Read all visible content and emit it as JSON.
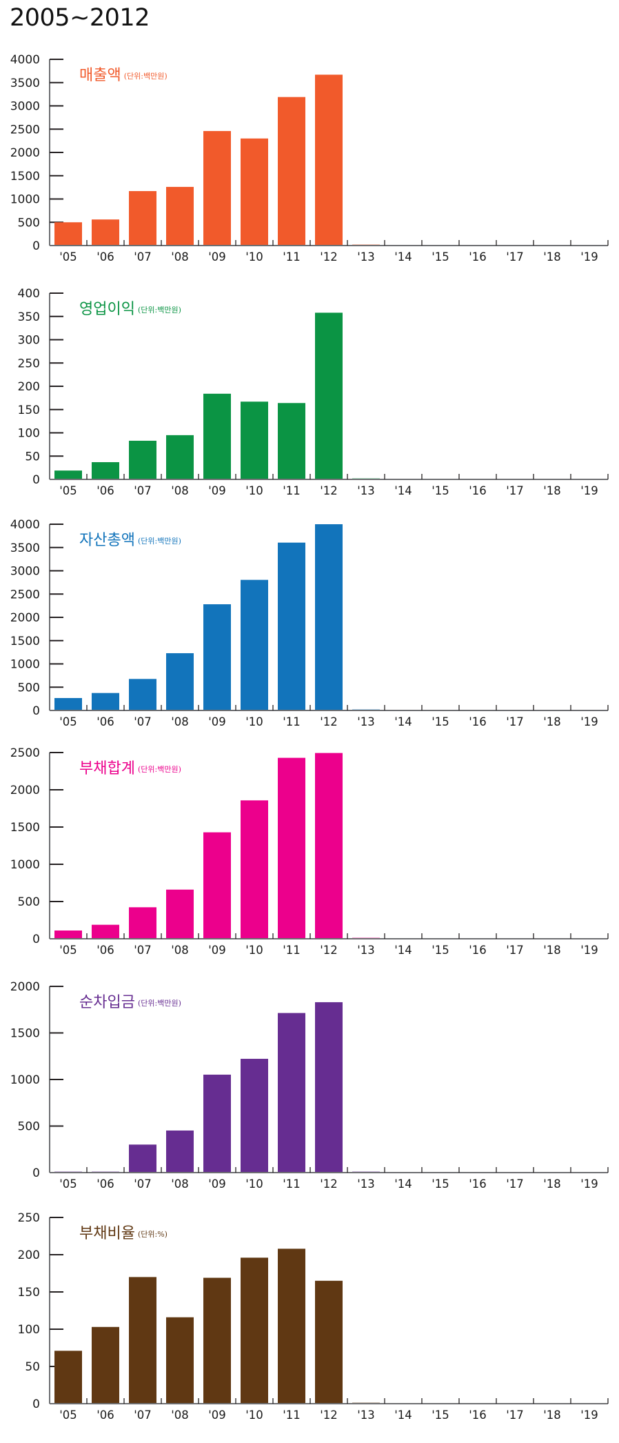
{
  "page": {
    "title": "2005~2012"
  },
  "chart_data": [
    {
      "type": "bar",
      "title": "매출액",
      "unit": "(단위:백만원)",
      "color": "#F15A2B",
      "categories": [
        "'05",
        "'06",
        "'07",
        "'08",
        "'09",
        "'10",
        "'11",
        "'12",
        "'13",
        "'14",
        "'15",
        "'16",
        "'17",
        "'18",
        "'19"
      ],
      "values": [
        500,
        560,
        1170,
        1260,
        2460,
        2300,
        3190,
        3670,
        0,
        null,
        null,
        null,
        null,
        null,
        null
      ],
      "yticks": [
        0,
        500,
        1000,
        1500,
        2000,
        2500,
        3000,
        3500,
        4000
      ],
      "ylim": [
        0,
        4000
      ],
      "xlabel": "",
      "ylabel": ""
    },
    {
      "type": "bar",
      "title": "영업이익",
      "unit": "(단위:백만원)",
      "color": "#0B9444",
      "categories": [
        "'05",
        "'06",
        "'07",
        "'08",
        "'09",
        "'10",
        "'11",
        "'12",
        "'13",
        "'14",
        "'15",
        "'16",
        "'17",
        "'18",
        "'19"
      ],
      "values": [
        19,
        37,
        83,
        95,
        184,
        167,
        164,
        358,
        0,
        null,
        null,
        null,
        null,
        null,
        null
      ],
      "yticks": [
        0,
        50,
        100,
        150,
        200,
        250,
        300,
        350,
        400
      ],
      "ylim": [
        0,
        400
      ],
      "xlabel": "",
      "ylabel": ""
    },
    {
      "type": "bar",
      "title": "자산총액",
      "unit": "(단위:백만원)",
      "color": "#1274BB",
      "categories": [
        "'05",
        "'06",
        "'07",
        "'08",
        "'09",
        "'10",
        "'11",
        "'12",
        "'13",
        "'14",
        "'15",
        "'16",
        "'17",
        "'18",
        "'19"
      ],
      "values": [
        267,
        375,
        677,
        1230,
        2281,
        2805,
        3605,
        4000,
        0,
        null,
        null,
        null,
        null,
        null,
        null
      ],
      "yticks": [
        0,
        500,
        1000,
        1500,
        2000,
        2500,
        3000,
        3500,
        4000
      ],
      "ylim": [
        0,
        4000
      ],
      "xlabel": "",
      "ylabel": ""
    },
    {
      "type": "bar",
      "title": "부채합계",
      "unit": "(단위:백만원)",
      "color": "#EC008C",
      "categories": [
        "'05",
        "'06",
        "'07",
        "'08",
        "'09",
        "'10",
        "'11",
        "'12",
        "'13",
        "'14",
        "'15",
        "'16",
        "'17",
        "'18",
        "'19"
      ],
      "values": [
        111,
        188,
        423,
        660,
        1429,
        1858,
        2429,
        2494,
        0,
        null,
        null,
        null,
        null,
        null,
        null
      ],
      "yticks": [
        0,
        500,
        1000,
        1500,
        2000,
        2500
      ],
      "ylim": [
        0,
        2500
      ],
      "xlabel": "",
      "ylabel": ""
    },
    {
      "type": "bar",
      "title": "순차입금",
      "unit": "(단위:백만원)",
      "color": "#662D91",
      "categories": [
        "'05",
        "'06",
        "'07",
        "'08",
        "'09",
        "'10",
        "'11",
        "'12",
        "'13",
        "'14",
        "'15",
        "'16",
        "'17",
        "'18",
        "'19"
      ],
      "values": [
        0,
        0,
        301,
        452,
        1052,
        1222,
        1714,
        1830,
        0,
        null,
        null,
        null,
        null,
        null,
        null
      ],
      "yticks": [
        0,
        500,
        1000,
        1500,
        2000
      ],
      "ylim": [
        0,
        2000
      ],
      "xlabel": "",
      "ylabel": ""
    },
    {
      "type": "bar",
      "title": "부채비율",
      "unit": "(단위:%)",
      "color": "#603813",
      "categories": [
        "'05",
        "'06",
        "'07",
        "'08",
        "'09",
        "'10",
        "'11",
        "'12",
        "'13",
        "'14",
        "'15",
        "'16",
        "'17",
        "'18",
        "'19"
      ],
      "values": [
        71,
        103,
        170,
        116,
        169,
        196,
        208,
        165,
        0,
        null,
        null,
        null,
        null,
        null,
        null
      ],
      "yticks": [
        0,
        50,
        100,
        150,
        200,
        250
      ],
      "ylim": [
        0,
        250
      ],
      "xlabel": "",
      "ylabel": ""
    }
  ]
}
